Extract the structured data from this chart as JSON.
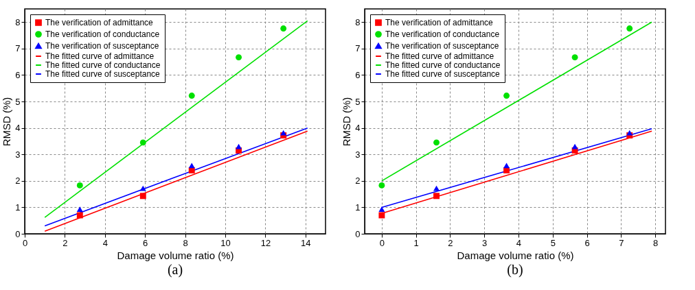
{
  "chart_data": [
    {
      "type": "scatter",
      "title": "(a)",
      "xlabel": "Damage volume ratio (%)",
      "ylabel": "RMSD (%)",
      "xlim": [
        0,
        15
      ],
      "ylim": [
        0,
        8.5
      ],
      "xticks": [
        0,
        2,
        4,
        6,
        8,
        10,
        12,
        14
      ],
      "yticks": [
        0,
        1,
        2,
        3,
        4,
        5,
        6,
        7,
        8
      ],
      "grid": true,
      "legend": "top left",
      "series": [
        {
          "name": "The verification of admittance",
          "type": "scatter",
          "marker": "square",
          "color": "#ff0000",
          "x": [
            2.75,
            5.9,
            8.33,
            10.67,
            12.9
          ],
          "values": [
            0.7,
            1.43,
            2.4,
            3.15,
            3.72
          ]
        },
        {
          "name": "The verification of conductance",
          "type": "scatter",
          "marker": "circle",
          "color": "#00e000",
          "x": [
            2.75,
            5.9,
            8.33,
            10.67,
            12.9
          ],
          "values": [
            1.83,
            3.45,
            5.22,
            6.67,
            7.76
          ]
        },
        {
          "name": "The verification of susceptance",
          "type": "scatter",
          "marker": "triangle",
          "color": "#0000ff",
          "x": [
            2.75,
            5.9,
            8.33,
            10.67,
            12.9
          ],
          "values": [
            0.93,
            1.72,
            2.58,
            3.3,
            3.82
          ]
        },
        {
          "name": "The fitted curve of admittance",
          "type": "line",
          "color": "#ff0000",
          "x": [
            1,
            14.1
          ],
          "values": [
            0.1,
            3.88
          ]
        },
        {
          "name": "The fitted curve of conductance",
          "type": "line",
          "color": "#00e000",
          "x": [
            1,
            14.1
          ],
          "values": [
            0.62,
            8.05
          ]
        },
        {
          "name": "The fitted curve of susceptance",
          "type": "line",
          "color": "#0000ff",
          "x": [
            1,
            14.1
          ],
          "values": [
            0.3,
            4.0
          ]
        }
      ]
    },
    {
      "type": "scatter",
      "title": "(b)",
      "xlabel": "Damage volume ratio (%)",
      "ylabel": "RMSD (%)",
      "xlim": [
        -0.5,
        8.3
      ],
      "ylim": [
        0,
        8.5
      ],
      "xticks": [
        0,
        1,
        2,
        3,
        4,
        5,
        6,
        7,
        8
      ],
      "yticks": [
        0,
        1,
        2,
        3,
        4,
        5,
        6,
        7,
        8
      ],
      "grid": true,
      "legend": "top left",
      "series": [
        {
          "name": "The verification of admittance",
          "type": "scatter",
          "marker": "square",
          "color": "#ff0000",
          "x": [
            0,
            1.6,
            3.65,
            5.65,
            7.25
          ],
          "values": [
            0.7,
            1.43,
            2.4,
            3.15,
            3.72
          ]
        },
        {
          "name": "The verification of conductance",
          "type": "scatter",
          "marker": "circle",
          "color": "#00e000",
          "x": [
            0,
            1.6,
            3.65,
            5.65,
            7.25
          ],
          "values": [
            1.83,
            3.45,
            5.22,
            6.67,
            7.76
          ]
        },
        {
          "name": "The verification of susceptance",
          "type": "scatter",
          "marker": "triangle",
          "color": "#0000ff",
          "x": [
            0,
            1.6,
            3.65,
            5.65,
            7.25
          ],
          "values": [
            0.93,
            1.72,
            2.58,
            3.3,
            3.82
          ]
        },
        {
          "name": "The fitted curve of admittance",
          "type": "line",
          "color": "#ff0000",
          "x": [
            0,
            7.9
          ],
          "values": [
            0.77,
            3.88
          ]
        },
        {
          "name": "The fitted curve of conductance",
          "type": "line",
          "color": "#00e000",
          "x": [
            0,
            7.9
          ],
          "values": [
            2.0,
            8.0
          ]
        },
        {
          "name": "The fitted curve of susceptance",
          "type": "line",
          "color": "#0000ff",
          "x": [
            0,
            7.9
          ],
          "values": [
            1.0,
            3.97
          ]
        }
      ]
    }
  ]
}
